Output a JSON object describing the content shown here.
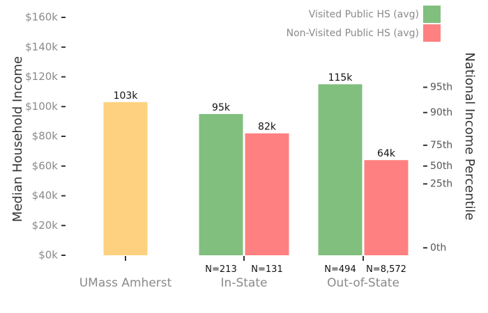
{
  "chart_data": {
    "type": "bar",
    "ylabel": "Median Household Income",
    "y2label": "National Income Percentile",
    "ylim": [
      0,
      160000
    ],
    "y_ticks": [
      {
        "value": 0,
        "label": "$0k"
      },
      {
        "value": 20000,
        "label": "$20k"
      },
      {
        "value": 40000,
        "label": "$40k"
      },
      {
        "value": 60000,
        "label": "$60k"
      },
      {
        "value": 80000,
        "label": "$80k"
      },
      {
        "value": 100000,
        "label": "$100k"
      },
      {
        "value": 120000,
        "label": "$120k"
      },
      {
        "value": 140000,
        "label": "$140k"
      },
      {
        "value": 160000,
        "label": "$160k"
      }
    ],
    "y2_ticks": [
      {
        "value": 5000,
        "label": "0th"
      },
      {
        "value": 48000,
        "label": "25th"
      },
      {
        "value": 60000,
        "label": "50th"
      },
      {
        "value": 74000,
        "label": "75th"
      },
      {
        "value": 96000,
        "label": "90th"
      },
      {
        "value": 113000,
        "label": "95th"
      }
    ],
    "legend": [
      {
        "name": "Visited Public HS (avg)",
        "color": "#81bf7e"
      },
      {
        "name": "Non-Visited Public HS (avg)",
        "color": "#ff8080"
      }
    ],
    "legend_position": "top-right",
    "categories": [
      "UMass Amherst",
      "In-State",
      "Out-of-State"
    ],
    "bars": [
      {
        "category": "UMass Amherst",
        "value": 103000,
        "label": "103k",
        "color": "#fdd17f",
        "n": ""
      },
      {
        "category": "In-State",
        "series": "Visited Public HS (avg)",
        "value": 95000,
        "label": "95k",
        "color": "#81bf7e",
        "n": "N=213"
      },
      {
        "category": "In-State",
        "series": "Non-Visited Public HS (avg)",
        "value": 82000,
        "label": "82k",
        "color": "#ff8080",
        "n": "N=131"
      },
      {
        "category": "Out-of-State",
        "series": "Visited Public HS (avg)",
        "value": 115000,
        "label": "115k",
        "color": "#81bf7e",
        "n": "N=494"
      },
      {
        "category": "Out-of-State",
        "series": "Non-Visited Public HS (avg)",
        "value": 64000,
        "label": "64k",
        "color": "#ff8080",
        "n": "N=8,572"
      }
    ],
    "grid": false
  }
}
